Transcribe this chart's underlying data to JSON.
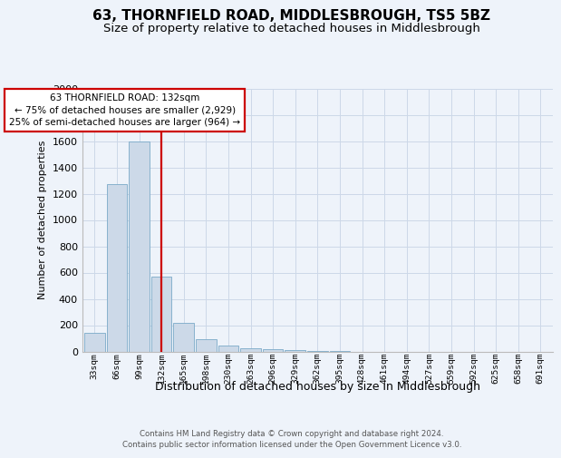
{
  "title": "63, THORNFIELD ROAD, MIDDLESBROUGH, TS5 5BZ",
  "subtitle": "Size of property relative to detached houses in Middlesbrough",
  "xlabel": "Distribution of detached houses by size in Middlesbrough",
  "ylabel": "Number of detached properties",
  "footer_line1": "Contains HM Land Registry data © Crown copyright and database right 2024.",
  "footer_line2": "Contains public sector information licensed under the Open Government Licence v3.0.",
  "categories": [
    "33sqm",
    "66sqm",
    "99sqm",
    "132sqm",
    "165sqm",
    "198sqm",
    "230sqm",
    "263sqm",
    "296sqm",
    "329sqm",
    "362sqm",
    "395sqm",
    "428sqm",
    "461sqm",
    "494sqm",
    "527sqm",
    "559sqm",
    "592sqm",
    "625sqm",
    "658sqm",
    "691sqm"
  ],
  "values": [
    140,
    1270,
    1600,
    570,
    215,
    90,
    45,
    25,
    15,
    8,
    6,
    5,
    0,
    0,
    0,
    0,
    0,
    0,
    0,
    0,
    0
  ],
  "bar_color": "#ccd9e8",
  "bar_edge_color": "#7aaac8",
  "red_line_index": 3,
  "red_line_color": "#cc0000",
  "annotation_line1": "63 THORNFIELD ROAD: 132sqm",
  "annotation_line2": "← 75% of detached houses are smaller (2,929)",
  "annotation_line3": "25% of semi-detached houses are larger (964) →",
  "annotation_box_facecolor": "#ffffff",
  "annotation_box_edgecolor": "#cc0000",
  "ylim_max": 2000,
  "ytick_step": 200,
  "grid_color": "#ccd8e8",
  "background_color": "#eef3fa",
  "title_fontsize": 11,
  "subtitle_fontsize": 9.5,
  "xlabel_fontsize": 9,
  "ylabel_fontsize": 8,
  "tick_fontsize": 8,
  "xtick_fontsize": 6.8,
  "annotation_fontsize": 7.5,
  "footer_fontsize": 6.2
}
